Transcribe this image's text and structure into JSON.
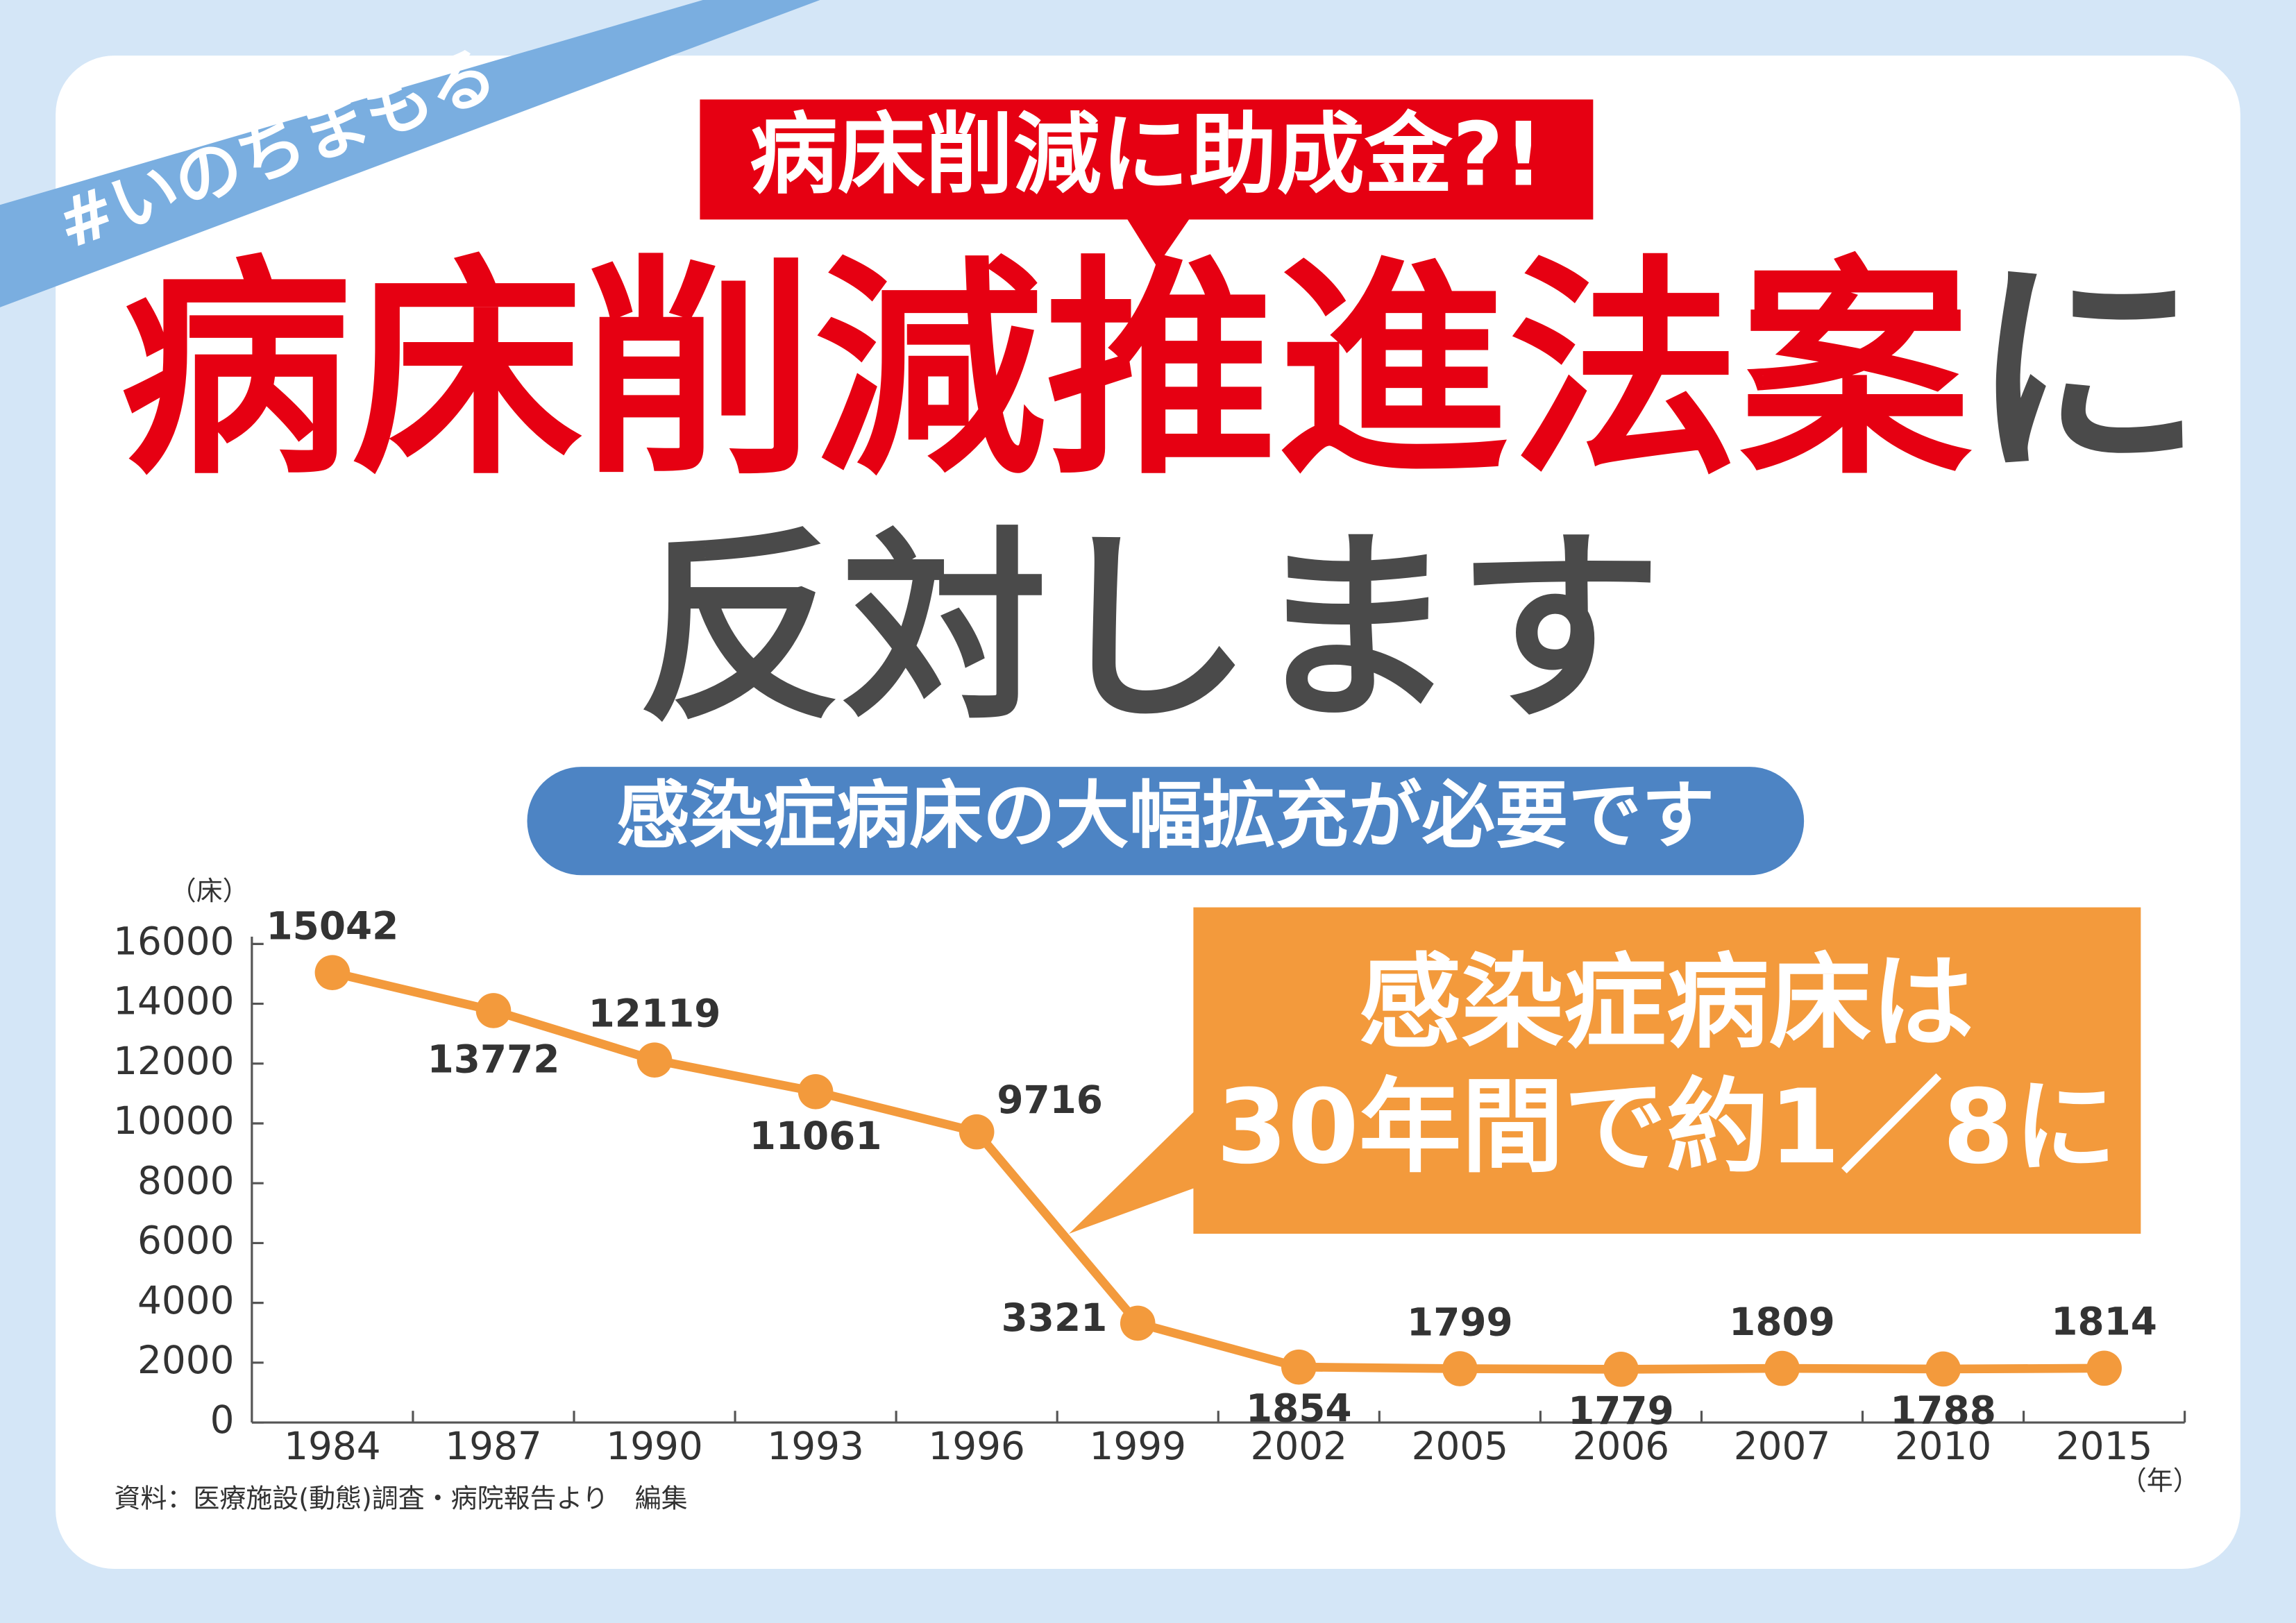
{
  "poster": {
    "hashtag": "#いのちまもる",
    "callout": "病床削減に助成金?!",
    "headline_red": "病床削減推進法案",
    "headline_tail": "に",
    "headline_line2": "反対します",
    "subtitle": "感染症病床の大幅拡充が必要です",
    "box_line1": "感染症病床は",
    "box_line2": "30年間で約1／8に",
    "source": "資料：医療施設(動態)調査・病院報告より　編集"
  },
  "chart_data": {
    "type": "line",
    "y_unit": "（床）",
    "x_unit": "（年）",
    "categories": [
      "1984",
      "1987",
      "1990",
      "1993",
      "1996",
      "1999",
      "2002",
      "2005",
      "2006",
      "2007",
      "2010",
      "2015"
    ],
    "values": [
      15042,
      13772,
      12119,
      11061,
      9716,
      3321,
      1854,
      1799,
      1779,
      1809,
      1788,
      1814
    ],
    "color": "#f39a3c",
    "ylim": [
      0,
      16000
    ],
    "yticks": [
      0,
      2000,
      4000,
      6000,
      8000,
      10000,
      12000,
      14000,
      16000
    ]
  }
}
